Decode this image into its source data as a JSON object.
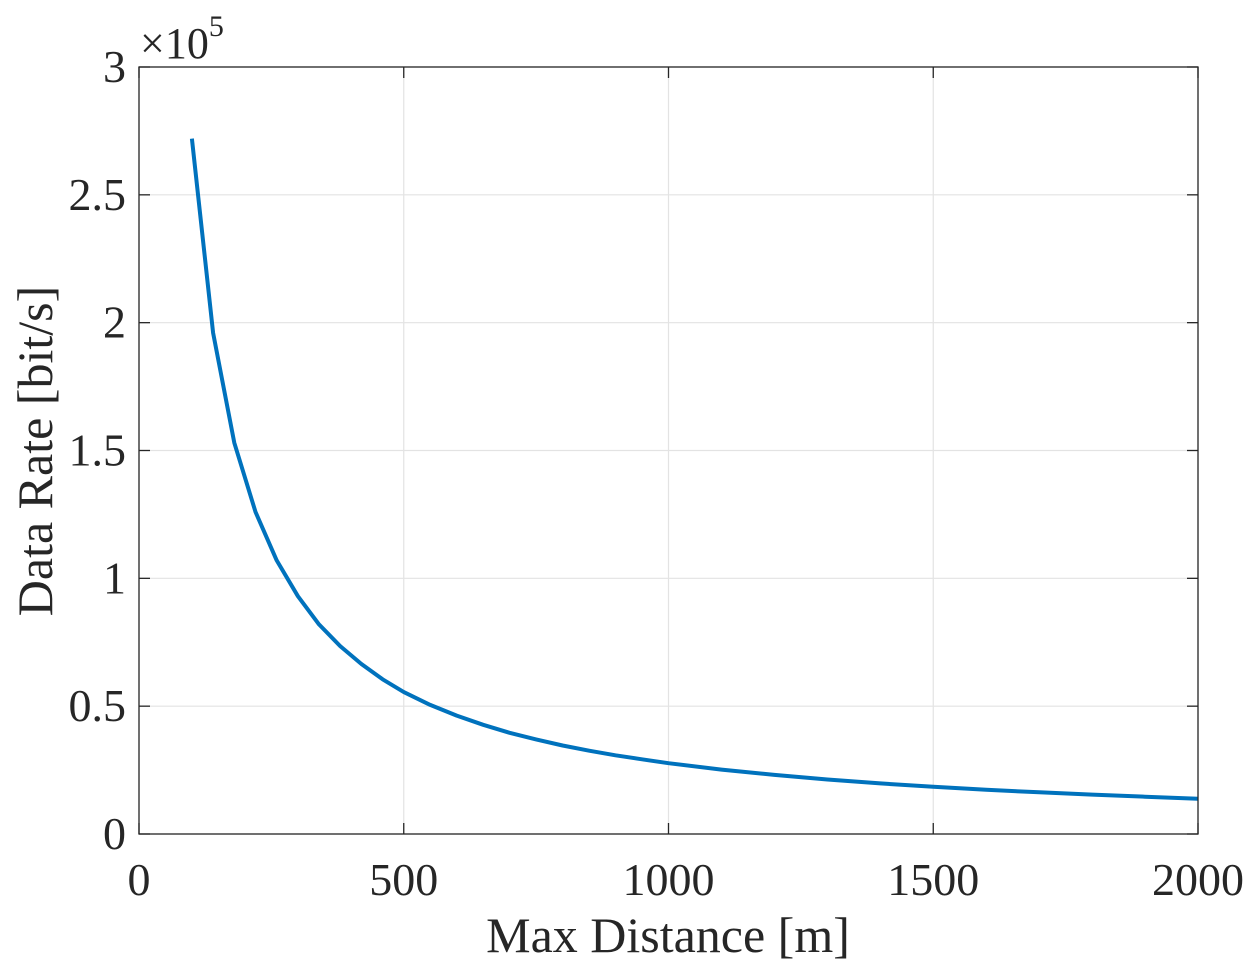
{
  "chart_data": {
    "type": "line",
    "title": "",
    "xlabel": "Max Distance [m]",
    "ylabel": "Data Rate [bit/s]",
    "xlim": [
      0,
      2000
    ],
    "ylim": [
      0,
      300000
    ],
    "x_ticks": [
      0,
      500,
      1000,
      1500,
      2000
    ],
    "x_tick_labels": [
      "0",
      "500",
      "1000",
      "1500",
      "2000"
    ],
    "y_ticks": [
      0,
      50000,
      100000,
      150000,
      200000,
      250000,
      300000
    ],
    "y_tick_labels": [
      "0",
      "0.5",
      "1",
      "1.5",
      "2",
      "2.5",
      "3"
    ],
    "y_multiplier_base": "×10",
    "y_multiplier_exponent": "5",
    "grid": true,
    "legend": "none",
    "line_color": "#0072BD",
    "series": [
      {
        "x": [
          100,
          140,
          180,
          220,
          260,
          300,
          340,
          380,
          420,
          460,
          500,
          550,
          600,
          650,
          700,
          750,
          800,
          850,
          900,
          950,
          1000,
          1100,
          1200,
          1300,
          1400,
          1500,
          1600,
          1700,
          1800,
          1900,
          2000
        ],
        "values": [
          272000,
          196000,
          153000,
          126000,
          107000,
          93000,
          82000,
          73500,
          66500,
          60500,
          55500,
          50500,
          46300,
          42700,
          39600,
          37000,
          34600,
          32600,
          30800,
          29200,
          27700,
          25200,
          23100,
          21300,
          19800,
          18500,
          17300,
          16300,
          15400,
          14600,
          13800
        ]
      }
    ]
  }
}
